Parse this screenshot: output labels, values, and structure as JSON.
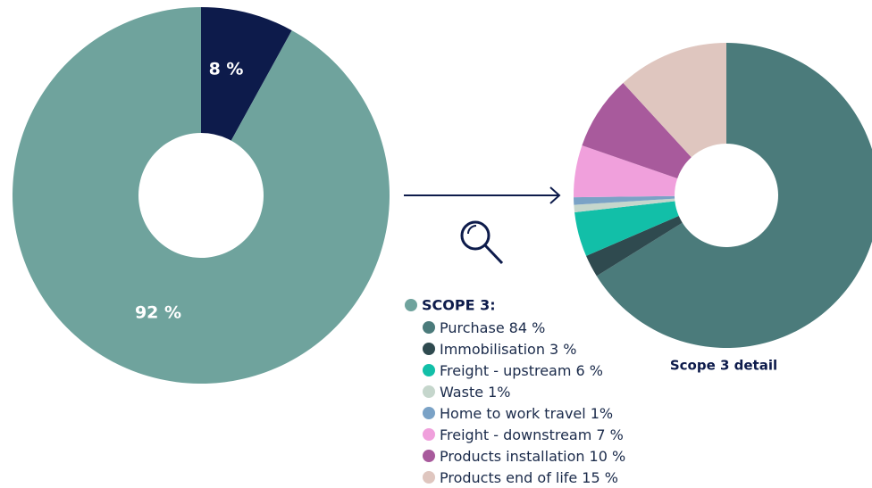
{
  "chart_data": [
    {
      "type": "pie",
      "donut": true,
      "categories": [
        null,
        null
      ],
      "values": [
        8,
        92
      ],
      "value_labels": [
        "8 %",
        "92 %"
      ],
      "colors": [
        "#0d1b4b",
        "#6fa39d"
      ]
    },
    {
      "type": "pie",
      "donut": true,
      "title": "Scope 3 detail",
      "legend_title": "SCOPE 3:",
      "legend_title_color": "#6fa39d",
      "categories": [
        "Purchase",
        "Immobilisation",
        "Freight - upstream",
        "Waste",
        "Home to work travel",
        "Freight - downstream",
        "Products installation",
        "Products end of life"
      ],
      "values": [
        84,
        3,
        6,
        1,
        1,
        7,
        10,
        15
      ],
      "value_labels": [
        "84 %",
        "3 %",
        "6 %",
        "1%",
        "1%",
        "7 %",
        "10 %",
        "15 %"
      ],
      "colors": [
        "#4b7b7b",
        "#2f4a4f",
        "#12bfa8",
        "#c5d6cc",
        "#7aa2c6",
        "#f0a0dc",
        "#a85a9c",
        "#dfc6bf"
      ]
    }
  ]
}
